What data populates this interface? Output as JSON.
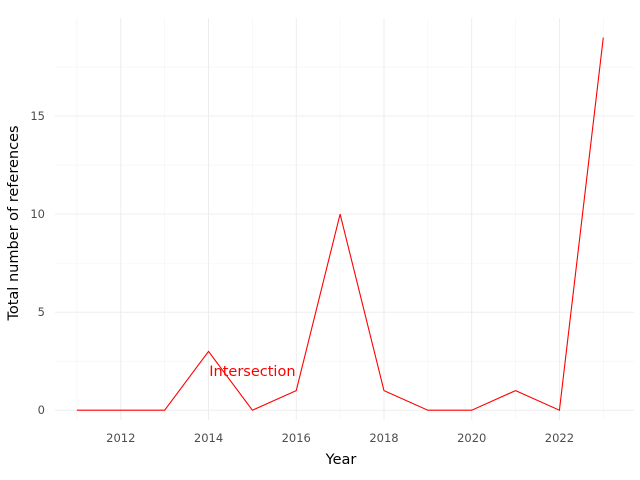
{
  "chart_data": {
    "type": "line",
    "title": "",
    "xlabel": "Year",
    "ylabel": "Total number of references",
    "xlim": [
      2010.5,
      2023.7
    ],
    "ylim": [
      -0.5,
      20
    ],
    "x_ticks": [
      2012,
      2014,
      2016,
      2018,
      2020,
      2022
    ],
    "y_ticks": [
      0,
      5,
      10,
      15
    ],
    "grid": true,
    "legend": "none",
    "series": [
      {
        "color": "#ff0000",
        "x": [
          2011,
          2012,
          2013,
          2014,
          2015,
          2016,
          2017,
          2018,
          2019,
          2020,
          2021,
          2022,
          2023
        ],
        "y": [
          0,
          0,
          0,
          3,
          0,
          1,
          10,
          1,
          0,
          0,
          1,
          0,
          19
        ]
      }
    ],
    "annotations": [
      {
        "text": "Intersection",
        "x": 2015,
        "y": 2,
        "color": "#ff0000"
      }
    ]
  }
}
